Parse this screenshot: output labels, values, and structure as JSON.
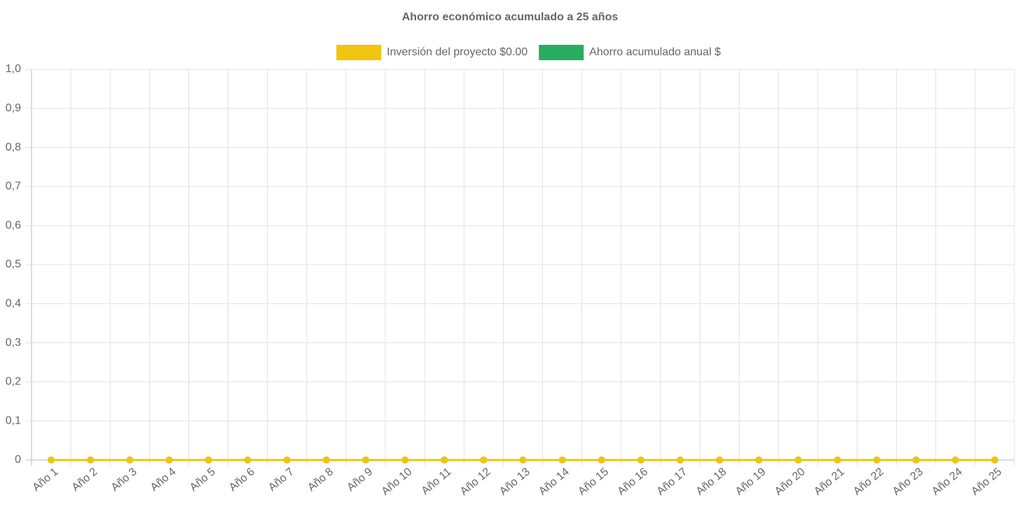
{
  "chart_data": {
    "type": "line",
    "title": "Ahorro económico acumulado a 25 años",
    "categories": [
      "Año 1",
      "Año 2",
      "Año 3",
      "Año 4",
      "Año 5",
      "Año 6",
      "Año 7",
      "Año 8",
      "Año 9",
      "Año 10",
      "Año 11",
      "Año 12",
      "Año 13",
      "Año 14",
      "Año 15",
      "Año 16",
      "Año 17",
      "Año 18",
      "Año 19",
      "Año 20",
      "Año 21",
      "Año 22",
      "Año 23",
      "Año 24",
      "Año 25"
    ],
    "series": [
      {
        "name": "Inversión del proyecto $0.00",
        "color": "#f1c40f",
        "values": [
          0,
          0,
          0,
          0,
          0,
          0,
          0,
          0,
          0,
          0,
          0,
          0,
          0,
          0,
          0,
          0,
          0,
          0,
          0,
          0,
          0,
          0,
          0,
          0,
          0
        ]
      },
      {
        "name": "Ahorro acumulado anual $",
        "color": "#27ae60",
        "values": [
          0,
          0,
          0,
          0,
          0,
          0,
          0,
          0,
          0,
          0,
          0,
          0,
          0,
          0,
          0,
          0,
          0,
          0,
          0,
          0,
          0,
          0,
          0,
          0,
          0
        ]
      }
    ],
    "ylim": [
      0,
      1
    ],
    "yticks": [
      0,
      {
        "value": 0.1,
        "label": "0,1"
      },
      {
        "value": 0.2,
        "label": "0,2"
      },
      {
        "value": 0.3,
        "label": "0,3"
      },
      {
        "value": 0.4,
        "label": "0,4"
      },
      {
        "value": 0.5,
        "label": "0,5"
      },
      {
        "value": 0.6,
        "label": "0,6"
      },
      {
        "value": 0.7,
        "label": "0,7"
      },
      {
        "value": 0.8,
        "label": "0,8"
      },
      {
        "value": 0.9,
        "label": "0,9"
      },
      {
        "value": 1,
        "label": "1,0"
      }
    ],
    "grid": true,
    "legend": "top"
  }
}
